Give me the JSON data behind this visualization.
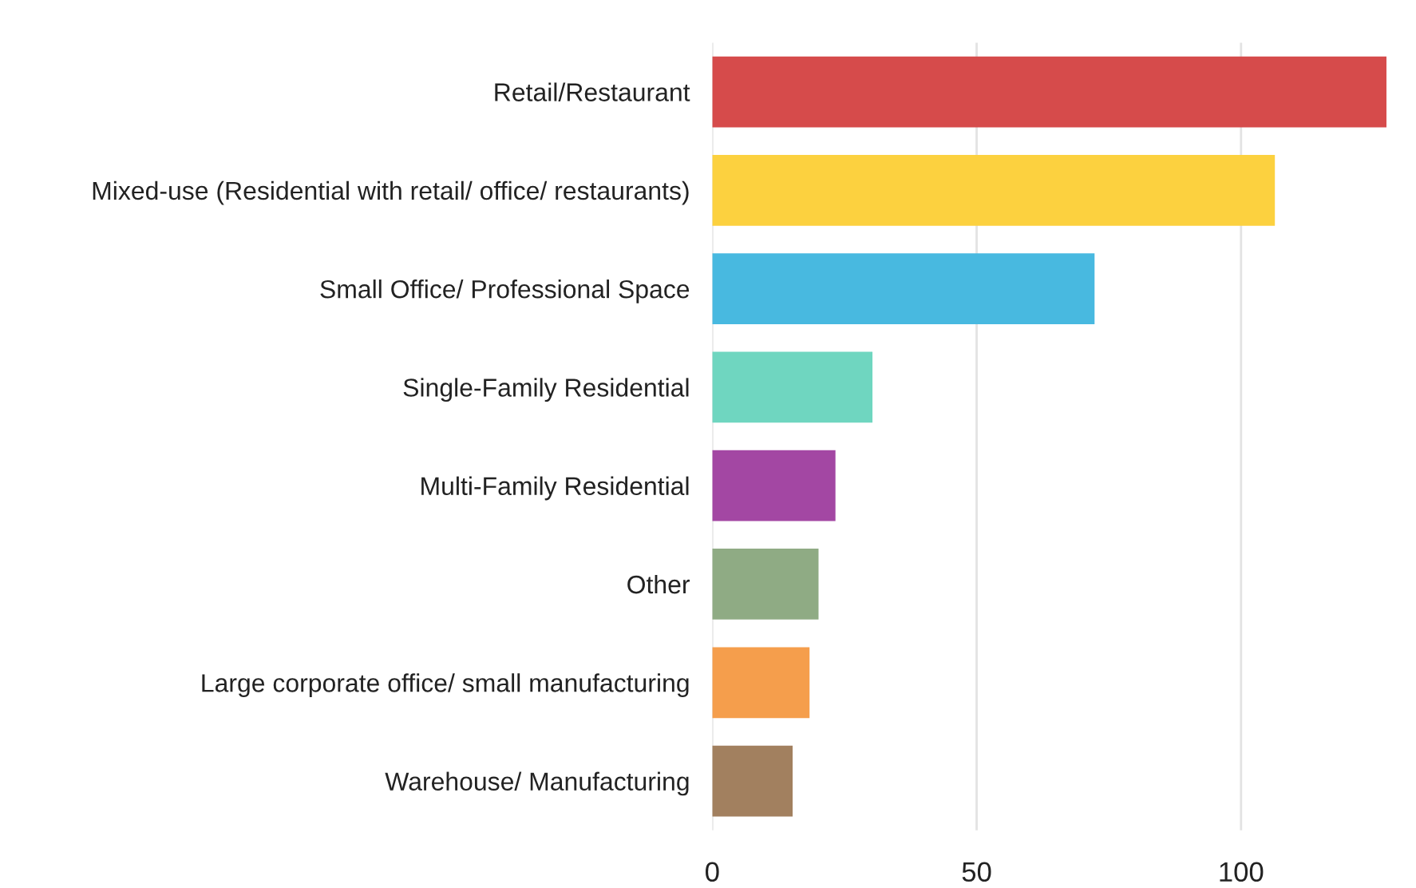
{
  "chart_data": {
    "type": "bar",
    "orientation": "horizontal",
    "categories": [
      "Retail/Restaurant",
      "Mixed-use (Residential with retail/ office/ restaurants)",
      "Small Office/ Professional Space",
      "Single-Family Residential",
      "Multi-Family Residential",
      "Other",
      "Large corporate office/ small manufacturing",
      "Warehouse/ Manufacturing"
    ],
    "values": [
      127.5,
      106.4,
      72.3,
      30.3,
      23.3,
      20.1,
      18.4,
      15.2
    ],
    "colors": [
      "#d64b4b",
      "#fcd13f",
      "#48b9e0",
      "#6fd6c0",
      "#a347a3",
      "#8fab84",
      "#f59e4c",
      "#a2805f"
    ],
    "xlim": [
      0,
      128
    ],
    "xticks": [
      0,
      50,
      100
    ],
    "grid": "x"
  }
}
